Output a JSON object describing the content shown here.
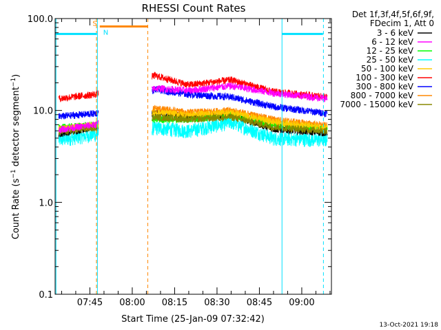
{
  "chart_data": {
    "type": "line",
    "title": "RHESSI Count Rates",
    "xlabel": "Start Time (25-Jan-09 07:32:42)",
    "ylabel_main": "Count Rate (s",
    "ylabel_sup1": "−1",
    "ylabel_mid": " detector segment",
    "ylabel_sup2": "−1",
    "ylabel_end": ")",
    "yscale": "log",
    "ylim": [
      0.1,
      100.0
    ],
    "xlim": [
      "07:32:42",
      "09:10:30"
    ],
    "x_ticks": [
      {
        "time": "07:45",
        "label": "07:45"
      },
      {
        "time": "08:00",
        "label": "08:00"
      },
      {
        "time": "08:15",
        "label": "08:15"
      },
      {
        "time": "08:30",
        "label": "08:30"
      },
      {
        "time": "08:45",
        "label": "08:45"
      },
      {
        "time": "09:00",
        "label": "09:00"
      }
    ],
    "y_ticks": [
      {
        "value": 0.1,
        "label": "0.1"
      },
      {
        "value": 1.0,
        "label": "1.0"
      },
      {
        "value": 10.0,
        "label": "10.0"
      },
      {
        "value": 100.0,
        "label": "100.0"
      }
    ],
    "legend_header": [
      "Det 1f,3f,4f,5f,6f,9f,",
      "FDecim 1, Att 0"
    ],
    "legend_placement": "right",
    "data_gap": [
      "07:48:00",
      "08:07:00"
    ],
    "series": [
      {
        "name": "3 - 6 keV",
        "color": "#000000",
        "x": [
          "07:34",
          "07:47",
          "08:08",
          "08:20",
          "08:35",
          "08:50",
          "09:09"
        ],
        "y": [
          5.6,
          6.6,
          9.5,
          8.5,
          9.0,
          6.3,
          5.7
        ]
      },
      {
        "name": "6 - 12 keV",
        "color": "#ff00ff",
        "x": [
          "07:34",
          "07:47",
          "08:08",
          "08:20",
          "08:35",
          "08:50",
          "09:09"
        ],
        "y": [
          6.2,
          7.0,
          17.5,
          16.5,
          18.5,
          15.5,
          13.5
        ]
      },
      {
        "name": "12 - 25 keV",
        "color": "#00ff00",
        "x": [
          "07:34",
          "07:47",
          "08:08",
          "08:20",
          "08:35",
          "08:50",
          "09:09"
        ],
        "y": [
          6.5,
          7.0,
          8.0,
          8.0,
          9.0,
          7.0,
          6.3
        ]
      },
      {
        "name": "25 - 50 keV",
        "color": "#00ffff",
        "x": [
          "07:34",
          "07:47",
          "08:08",
          "08:20",
          "08:35",
          "08:50",
          "09:09"
        ],
        "y": [
          4.8,
          5.5,
          6.5,
          6.0,
          7.5,
          5.0,
          4.8
        ]
      },
      {
        "name": "50 - 100 keV",
        "color": "#ffcc00",
        "x": [
          "07:34",
          "07:47",
          "08:08",
          "08:20",
          "08:35",
          "08:50",
          "09:09"
        ],
        "y": [
          6.3,
          7.0,
          9.5,
          9.0,
          9.5,
          7.5,
          6.5
        ]
      },
      {
        "name": "100 - 300 keV",
        "color": "#ff0000",
        "x": [
          "07:34",
          "07:47",
          "08:08",
          "08:20",
          "08:35",
          "08:50",
          "09:09"
        ],
        "y": [
          13.5,
          15.0,
          24.0,
          19.0,
          21.5,
          16.0,
          14.0
        ]
      },
      {
        "name": "300 - 800 keV",
        "color": "#0000ff",
        "x": [
          "07:34",
          "07:47",
          "08:08",
          "08:20",
          "08:35",
          "08:50",
          "09:09"
        ],
        "y": [
          8.6,
          9.3,
          17.0,
          15.0,
          14.0,
          11.0,
          9.3
        ]
      },
      {
        "name": "800 - 7000 keV",
        "color": "#ff8800",
        "x": [
          "07:34",
          "07:47",
          "08:08",
          "08:20",
          "08:35",
          "08:50",
          "09:09"
        ],
        "y": [
          6.3,
          6.8,
          10.5,
          9.5,
          10.0,
          8.0,
          6.8
        ]
      },
      {
        "name": "7000 - 15000 keV",
        "color": "#888800",
        "x": [
          "07:34",
          "07:47",
          "08:08",
          "08:20",
          "08:35",
          "08:50",
          "09:09"
        ],
        "y": [
          5.8,
          6.5,
          8.5,
          8.0,
          8.5,
          6.6,
          6.0
        ]
      }
    ],
    "annotations": {
      "saa_label": "S",
      "night_label": "N",
      "saa_bar": {
        "start": "07:48:30",
        "end": "08:05:30",
        "value": 82,
        "color": "#ff8800"
      },
      "night_bars": [
        {
          "start": "07:32:42",
          "end": "07:47:30",
          "value": 68,
          "color": "#00e0ff"
        },
        {
          "start": "08:53:00",
          "end": "09:07:30",
          "value": 68,
          "color": "#00e0ff"
        }
      ],
      "vertical_lines": [
        {
          "time": "07:33:00",
          "color": "#00e0ff",
          "style": "solid"
        },
        {
          "time": "07:47:20",
          "color": "#ff8800",
          "style": "dashed"
        },
        {
          "time": "07:47:40",
          "color": "#00e0ff",
          "style": "solid"
        },
        {
          "time": "08:05:30",
          "color": "#ff8800",
          "style": "dashed"
        },
        {
          "time": "08:53:00",
          "color": "#00e0ff",
          "style": "solid"
        },
        {
          "time": "09:07:40",
          "color": "#00e0ff",
          "style": "dashed"
        }
      ]
    }
  },
  "footer": {
    "timestamp": "13-Oct-2021 19:18"
  }
}
